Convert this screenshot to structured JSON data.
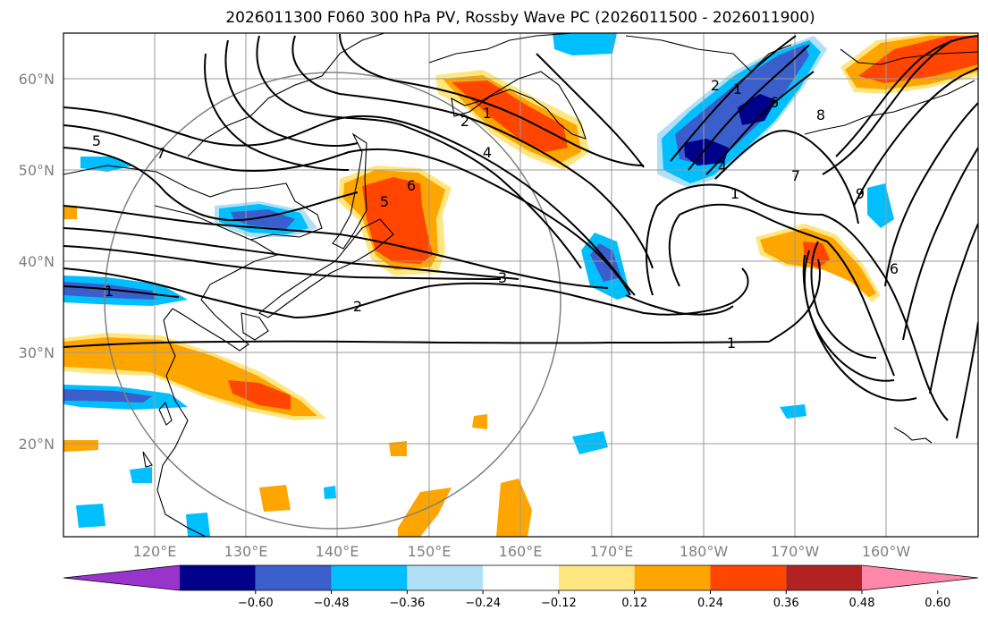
{
  "title": "2026011300 F060 300 hPa PV, Rossby Wave PC (2026011500 - 2026011900)",
  "lat_labels": [
    "60°N",
    "50°N",
    "40°N",
    "30°N",
    "20°N"
  ],
  "lon_labels": [
    "120°E",
    "130°E",
    "140°E",
    "150°E",
    "160°E",
    "170°E",
    "180°W",
    "170°W",
    "160°W"
  ],
  "colorbar": {
    "ticks": [
      "−0.60",
      "−0.48",
      "−0.36",
      "−0.24",
      "−0.12",
      "0.12",
      "0.24",
      "0.36",
      "0.48",
      "0.60"
    ],
    "colors": [
      "#9933cc",
      "#00008b",
      "#3a5fcd",
      "#00bfff",
      "#b0e0f5",
      "#ffffff",
      "#ffe680",
      "#ffa500",
      "#ff4500",
      "#b22222",
      "#ff88aa"
    ]
  },
  "contour_labels": [
    "5",
    "7",
    "2",
    "1",
    "4",
    "5",
    "6",
    "3",
    "2",
    "1",
    "1",
    "2",
    "1",
    "4",
    "7",
    "8",
    "6",
    "9",
    "6",
    "1"
  ]
}
